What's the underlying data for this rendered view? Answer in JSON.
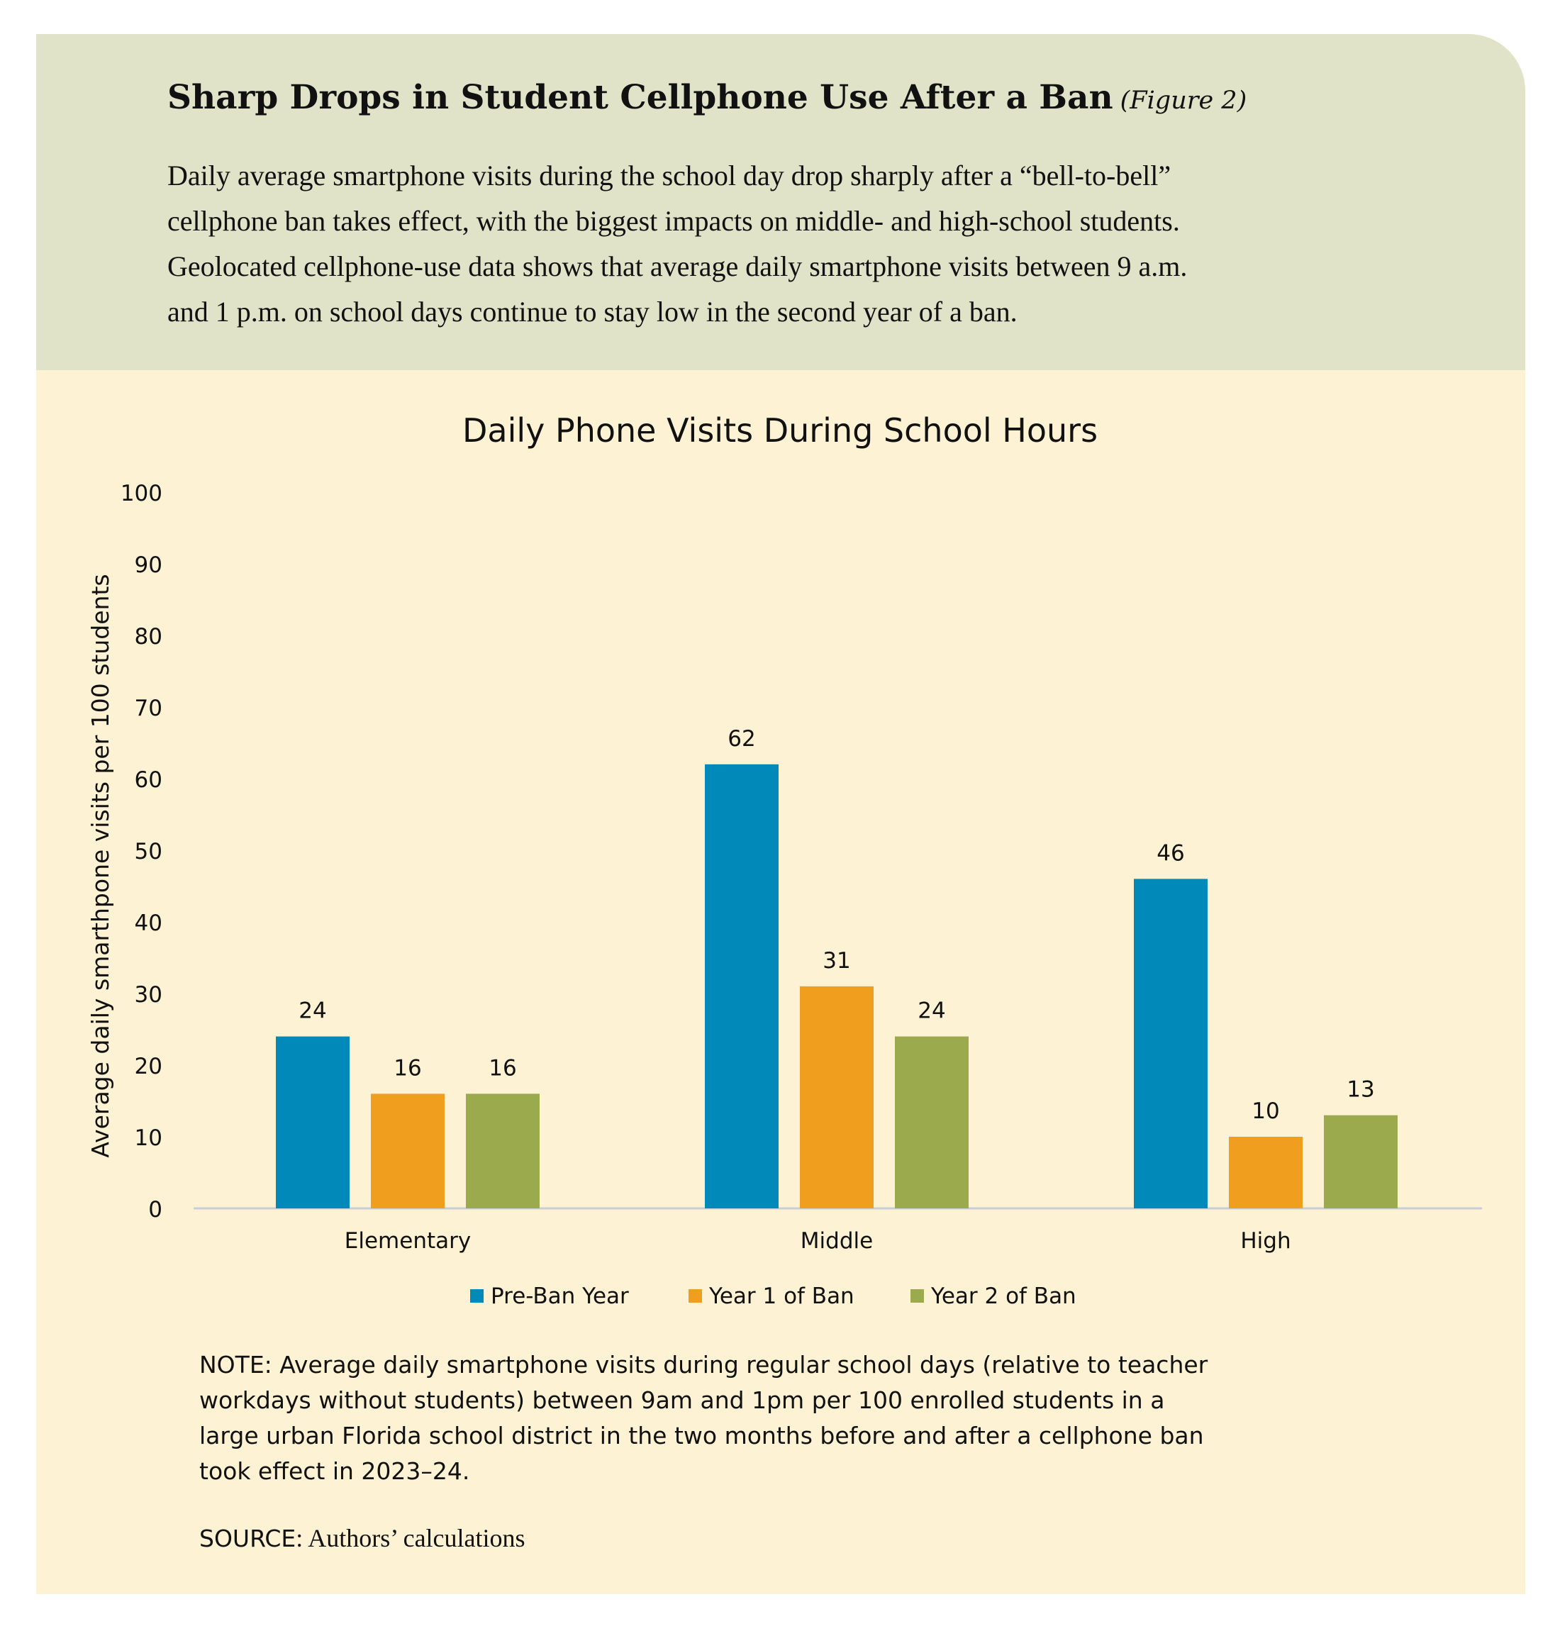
{
  "header": {
    "title": "Sharp Drops in Student Cellphone Use After a Ban",
    "figure_label": "(Figure 2)",
    "description_lines": [
      "Daily average smartphone visits during the school day drop sharply after a “bell-to-bell”",
      "cellphone ban takes effect, with the biggest impacts on middle- and high-school students.",
      "Geolocated cellphone-use data shows that average daily smartphone visits between 9 a.m.",
      "and 1 p.m. on school days continue to stay low in the second year of a ban."
    ]
  },
  "chart_data": {
    "type": "bar",
    "title": "Daily Phone Visits During School Hours",
    "xlabel": "",
    "ylabel": "Average daily smarthpone visits per 100 students",
    "ylim": [
      0,
      100
    ],
    "yticks": [
      0,
      10,
      20,
      30,
      40,
      50,
      60,
      70,
      80,
      90,
      100
    ],
    "categories": [
      "Elementary",
      "Middle",
      "High"
    ],
    "series": [
      {
        "name": "Pre-Ban Year",
        "values": [
          24,
          62,
          46
        ],
        "color": "#0089b9"
      },
      {
        "name": "Year 1 of Ban",
        "values": [
          16,
          31,
          10
        ],
        "color": "#f09e1e"
      },
      {
        "name": "Year 2 of Ban",
        "values": [
          16,
          24,
          13
        ],
        "color": "#9aaa4c"
      }
    ],
    "grid": false,
    "legend_position": "bottom-center",
    "data_labels": true
  },
  "note": {
    "lines": [
      "NOTE: Average daily smartphone visits during regular school days (relative to teacher",
      "workdays without students) between 9am and 1pm per 100 enrolled students in a",
      "large urban Florida school district in the two months before and after a cellphone ban",
      "took effect in 2023–24."
    ]
  },
  "source": {
    "label": "SOURCE",
    "text": ": Authors’ calculations"
  }
}
